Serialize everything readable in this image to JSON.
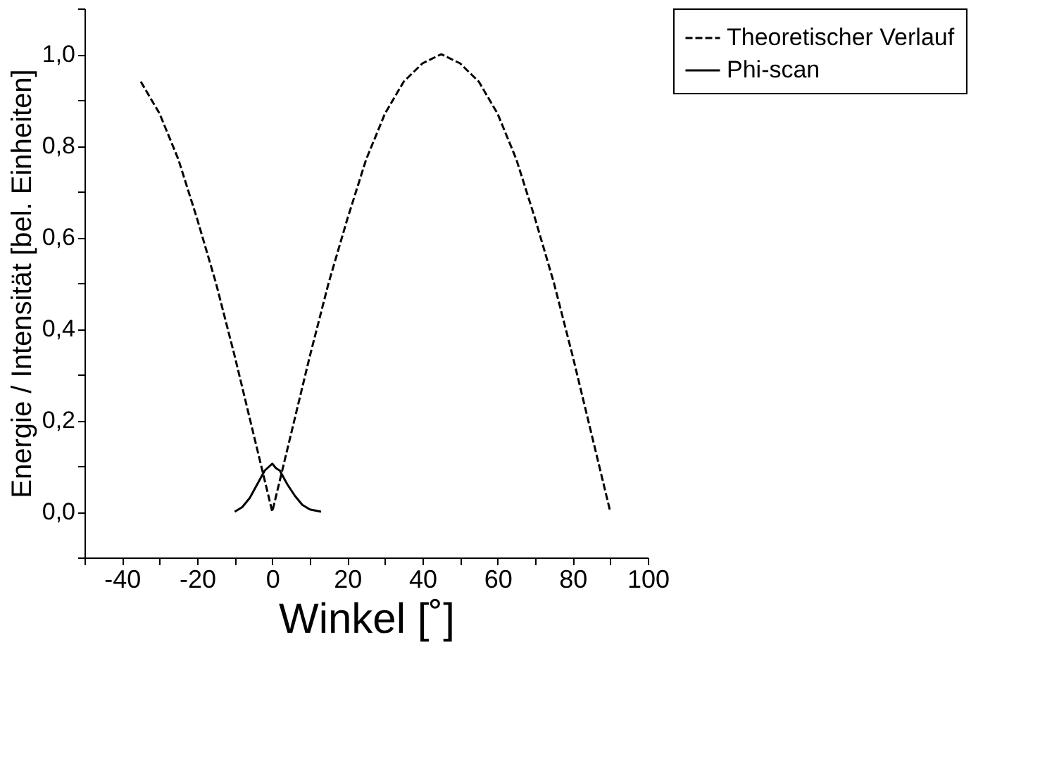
{
  "chart_data": {
    "type": "line",
    "xlabel": "Winkel [˚]",
    "ylabel": "Energie / Intensität [bel. Einheiten]",
    "xlim": [
      -50,
      100
    ],
    "ylim": [
      -0.1,
      1.1
    ],
    "xticks": [
      {
        "value": -50,
        "label": null
      },
      -40,
      {
        "value": -30,
        "label": null
      },
      -20,
      {
        "value": -10,
        "label": null
      },
      0,
      {
        "value": 10,
        "label": null
      },
      20,
      {
        "value": 30,
        "label": null
      },
      40,
      {
        "value": 50,
        "label": null
      },
      60,
      {
        "value": 70,
        "label": null
      },
      80,
      {
        "value": 90,
        "label": null
      },
      100
    ],
    "yticks": [
      {
        "value": -0.1,
        "label": null
      },
      {
        "value": 0,
        "label": "0,0"
      },
      {
        "value": 0.1,
        "label": null
      },
      {
        "value": 0.2,
        "label": "0,2"
      },
      {
        "value": 0.3,
        "label": null
      },
      {
        "value": 0.4,
        "label": "0,4"
      },
      {
        "value": 0.5,
        "label": null
      },
      {
        "value": 0.6,
        "label": "0,6"
      },
      {
        "value": 0.7,
        "label": null
      },
      {
        "value": 0.8,
        "label": "0,8"
      },
      {
        "value": 0.9,
        "label": null
      },
      {
        "value": 1.0,
        "label": "1,0"
      },
      {
        "value": 1.1,
        "label": null
      }
    ],
    "legend": "right",
    "grid": false,
    "series": [
      {
        "name": "Theoretischer Verlauf",
        "color": "#000000",
        "line_style": "dashed",
        "x": [
          -35,
          -30,
          -25,
          -20,
          -15,
          -10,
          -5,
          0,
          5,
          10,
          15,
          20,
          25,
          30,
          35,
          40,
          45,
          50,
          55,
          60,
          65,
          70,
          75,
          80,
          85,
          90
        ],
        "values": [
          0.94,
          0.87,
          0.77,
          0.64,
          0.5,
          0.34,
          0.17,
          0.0,
          0.17,
          0.34,
          0.5,
          0.64,
          0.77,
          0.87,
          0.94,
          0.98,
          1.0,
          0.98,
          0.94,
          0.87,
          0.77,
          0.64,
          0.5,
          0.34,
          0.17,
          0.0
        ]
      },
      {
        "name": "Phi-scan",
        "color": "#000000",
        "line_style": "solid",
        "x": [
          -10,
          -8,
          -6,
          -4,
          -2,
          0,
          1,
          2,
          4,
          6,
          8,
          10,
          13
        ],
        "values": [
          0.0,
          0.01,
          0.03,
          0.06,
          0.09,
          0.105,
          0.095,
          0.09,
          0.06,
          0.035,
          0.015,
          0.005,
          0.0
        ]
      }
    ]
  }
}
